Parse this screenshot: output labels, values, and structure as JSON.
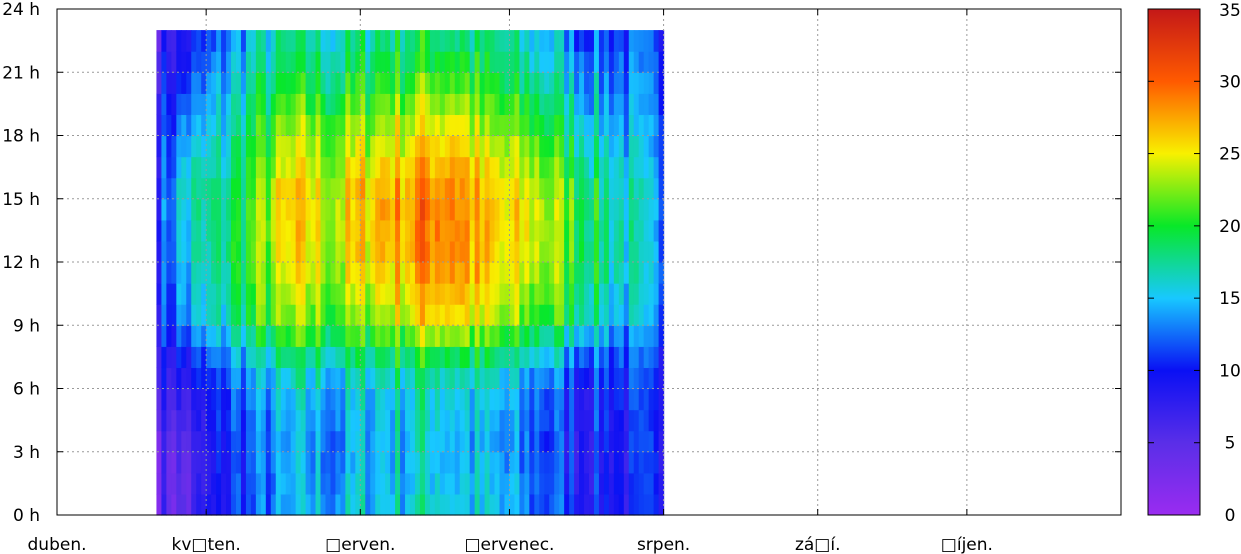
{
  "chart_data": {
    "type": "heatmap",
    "title": "",
    "xlabel": "",
    "ylabel": "",
    "x_tick_labels": [
      "duben.",
      "kv□ten.",
      "□erven.",
      "□ervenec.",
      "srpen.",
      "zá□í.",
      "□íjen."
    ],
    "y_tick_labels": [
      "0 h",
      "3 h",
      "6 h",
      "9 h",
      "12 h",
      "15 h",
      "18 h",
      "21 h",
      "24 h"
    ],
    "ylim": [
      0,
      24
    ],
    "grid": true,
    "colorbar": {
      "range": [
        0,
        35
      ],
      "tick_labels": [
        "0",
        "5",
        "10",
        "15",
        "20",
        "25",
        "30",
        "35"
      ],
      "colors": [
        "#9a2cf0",
        "#5a2ee8",
        "#0a10f4",
        "#18c8ff",
        "#08e828",
        "#f8f000",
        "#ff5a00",
        "#c41818"
      ]
    },
    "data_day_range": [
      20,
      121
    ],
    "hours_sampled": [
      0,
      3,
      6,
      8,
      9,
      12,
      15,
      18,
      21,
      23
    ],
    "daily_profile": [
      {
        "day": 20,
        "t": [
          5,
          5,
          8,
          9,
          10,
          11,
          11,
          10,
          8,
          6
        ]
      },
      {
        "day": 25,
        "t": [
          4,
          5,
          7,
          10,
          13,
          15,
          16,
          14,
          10,
          8
        ]
      },
      {
        "day": 30,
        "t": [
          8,
          7,
          9,
          12,
          15,
          16,
          17,
          15,
          12,
          10
        ]
      },
      {
        "day": 35,
        "t": [
          11,
          11,
          12,
          15,
          17,
          19,
          19,
          17,
          15,
          13
        ]
      },
      {
        "day": 40,
        "t": [
          12,
          12,
          13,
          17,
          20,
          22,
          22,
          20,
          17,
          15
        ]
      },
      {
        "day": 45,
        "t": [
          13,
          13,
          14,
          18,
          21,
          24,
          25,
          22,
          18,
          16
        ]
      },
      {
        "day": 50,
        "t": [
          15,
          14,
          15,
          19,
          22,
          25,
          26,
          23,
          19,
          17
        ]
      },
      {
        "day": 55,
        "t": [
          14,
          13,
          14,
          18,
          21,
          23,
          24,
          22,
          18,
          16
        ]
      },
      {
        "day": 60,
        "t": [
          15,
          14,
          15,
          19,
          22,
          25,
          26,
          23,
          19,
          17
        ]
      },
      {
        "day": 65,
        "t": [
          16,
          15,
          16,
          20,
          23,
          27,
          28,
          24,
          20,
          18
        ]
      },
      {
        "day": 70,
        "t": [
          16,
          15,
          16,
          20,
          24,
          27,
          28,
          25,
          20,
          18
        ]
      },
      {
        "day": 75,
        "t": [
          17,
          16,
          17,
          21,
          26,
          29,
          30,
          26,
          21,
          19
        ]
      },
      {
        "day": 80,
        "t": [
          16,
          15,
          16,
          21,
          26,
          29,
          29,
          26,
          21,
          18
        ]
      },
      {
        "day": 85,
        "t": [
          15,
          14,
          15,
          19,
          23,
          26,
          26,
          23,
          19,
          17
        ]
      },
      {
        "day": 90,
        "t": [
          14,
          13,
          14,
          18,
          22,
          24,
          25,
          22,
          18,
          16
        ]
      },
      {
        "day": 95,
        "t": [
          13,
          12,
          13,
          17,
          21,
          24,
          25,
          21,
          17,
          15
        ]
      },
      {
        "day": 100,
        "t": [
          12,
          11,
          12,
          16,
          20,
          23,
          23,
          20,
          16,
          14
        ]
      },
      {
        "day": 105,
        "t": [
          10,
          9,
          10,
          14,
          18,
          20,
          20,
          17,
          14,
          12
        ]
      },
      {
        "day": 110,
        "t": [
          10,
          10,
          11,
          13,
          16,
          18,
          18,
          16,
          13,
          12
        ]
      },
      {
        "day": 115,
        "t": [
          9,
          9,
          10,
          12,
          14,
          16,
          16,
          14,
          12,
          11
        ]
      },
      {
        "day": 120,
        "t": [
          9,
          9,
          9,
          10,
          12,
          13,
          13,
          12,
          11,
          10
        ]
      }
    ]
  }
}
